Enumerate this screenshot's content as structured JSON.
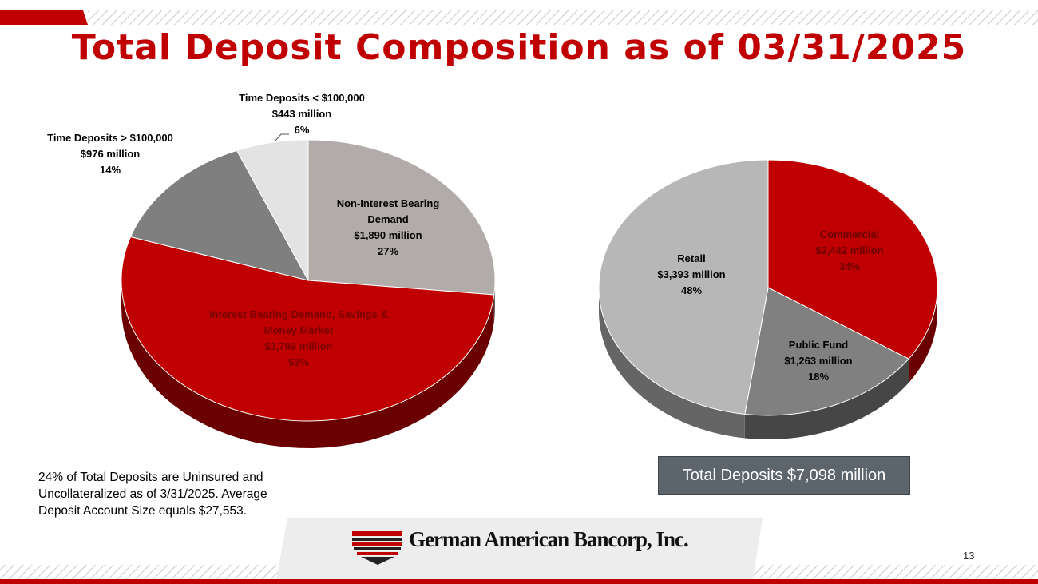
{
  "title": "Total Deposit Composition as of 03/31/2025",
  "chart_data": [
    {
      "type": "pie",
      "categories": [
        "Non-Interest Bearing Demand",
        "Interest Bearing Demand, Savings & Money Market",
        "Time Deposits > $100,000",
        "Time Deposits < $100,000"
      ],
      "values": [
        1890,
        3789,
        976,
        443
      ],
      "value_labels": [
        "$1,890 million",
        "$3,789 million",
        "$976 million",
        "$443 million"
      ],
      "percents": [
        27,
        53,
        14,
        6
      ],
      "percent_labels": [
        "27%",
        "53%",
        "14%",
        "6%"
      ],
      "colors": [
        "#b1aba9",
        "#c00000",
        "#7f7f7f",
        "#e3e3e3"
      ]
    },
    {
      "type": "pie",
      "categories": [
        "Commercial",
        "Public Fund",
        "Retail"
      ],
      "values": [
        2442,
        1263,
        3393
      ],
      "value_labels": [
        "$2,442 million",
        "$1,263 million",
        "$3,393 million"
      ],
      "percents": [
        34,
        18,
        48
      ],
      "percent_labels": [
        "34%",
        "18%",
        "48%"
      ],
      "colors": [
        "#c00000",
        "#808080",
        "#b7b7b7"
      ]
    }
  ],
  "note": "24% of Total Deposits are Uninsured and Uncollateralized as of 3/31/2025.  Average Deposit Account Size equals $27,553.",
  "total_box": "Total Deposits $7,098 million",
  "logo": "German American Bancorp, Inc.",
  "page_number": "13"
}
